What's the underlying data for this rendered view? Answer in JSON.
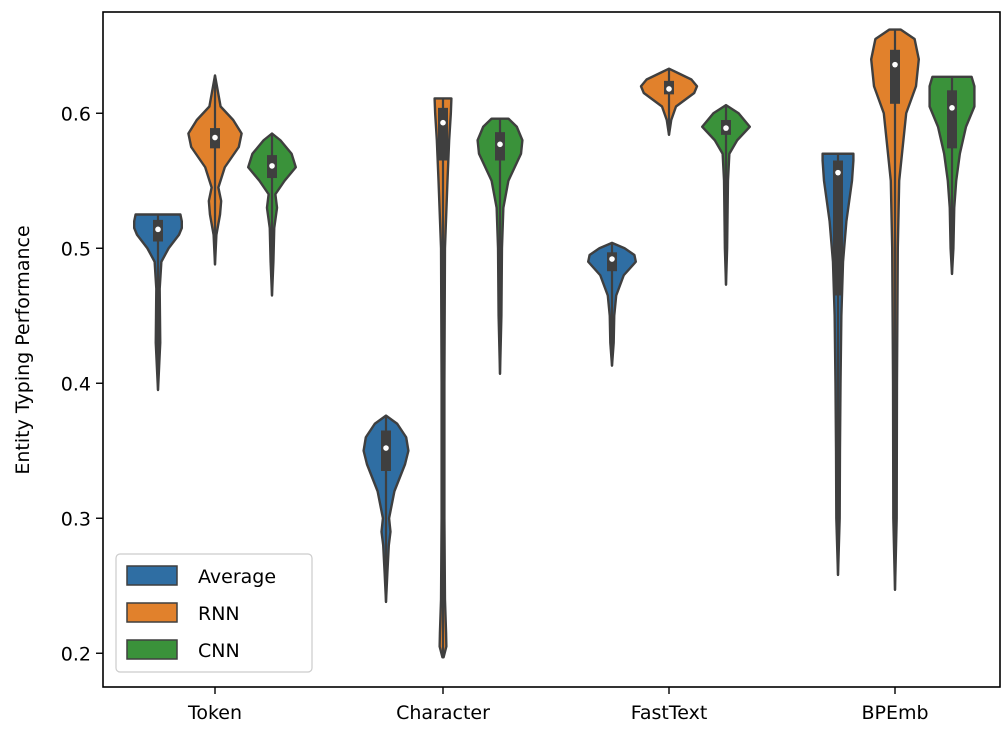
{
  "chart_data": {
    "type": "violin",
    "title": "",
    "xlabel": "",
    "ylabel": "Entity Typing Performance",
    "categories": [
      "Token",
      "Character",
      "FastText",
      "BPEmb"
    ],
    "ylim": [
      0.175,
      0.675
    ],
    "yticks": [
      "0.2",
      "0.3",
      "0.4",
      "0.5",
      "0.6"
    ],
    "legend_position": "lower-left",
    "colors": {
      "Average": "#2f6ea3",
      "RNN": "#e1812c",
      "CNN": "#3a923a",
      "outline": "#3f3f3f",
      "box": "#3f3f3f",
      "median": "#ffffff"
    },
    "series": [
      {
        "name": "Average",
        "violins": [
          {
            "category": "Token",
            "min": 0.395,
            "max": 0.525,
            "q1": 0.505,
            "median": 0.514,
            "q3": 0.521,
            "profile": [
              [
                0.395,
                0.0
              ],
              [
                0.41,
                0.035
              ],
              [
                0.43,
                0.08
              ],
              [
                0.45,
                0.07
              ],
              [
                0.47,
                0.06
              ],
              [
                0.49,
                0.12
              ],
              [
                0.5,
                0.38
              ],
              [
                0.51,
                0.75
              ],
              [
                0.515,
                0.85
              ],
              [
                0.52,
                0.85
              ],
              [
                0.525,
                0.8
              ]
            ]
          },
          {
            "category": "Character",
            "min": 0.238,
            "max": 0.376,
            "q1": 0.335,
            "median": 0.352,
            "q3": 0.365,
            "profile": [
              [
                0.238,
                0.0
              ],
              [
                0.26,
                0.05
              ],
              [
                0.28,
                0.1
              ],
              [
                0.29,
                0.16
              ],
              [
                0.3,
                0.11
              ],
              [
                0.32,
                0.3
              ],
              [
                0.34,
                0.68
              ],
              [
                0.35,
                0.8
              ],
              [
                0.36,
                0.72
              ],
              [
                0.37,
                0.4
              ],
              [
                0.376,
                0.0
              ]
            ]
          },
          {
            "category": "FastText",
            "min": 0.413,
            "max": 0.504,
            "q1": 0.483,
            "median": 0.492,
            "q3": 0.497,
            "profile": [
              [
                0.413,
                0.0
              ],
              [
                0.43,
                0.06
              ],
              [
                0.45,
                0.08
              ],
              [
                0.465,
                0.15
              ],
              [
                0.48,
                0.42
              ],
              [
                0.49,
                0.85
              ],
              [
                0.495,
                0.8
              ],
              [
                0.5,
                0.45
              ],
              [
                0.504,
                0.0
              ]
            ]
          },
          {
            "category": "BPEmb",
            "min": 0.258,
            "max": 0.57,
            "q1": 0.465,
            "median": 0.556,
            "q3": 0.565,
            "profile": [
              [
                0.258,
                0.0
              ],
              [
                0.3,
                0.06
              ],
              [
                0.35,
                0.07
              ],
              [
                0.4,
                0.09
              ],
              [
                0.45,
                0.12
              ],
              [
                0.49,
                0.18
              ],
              [
                0.52,
                0.3
              ],
              [
                0.55,
                0.5
              ],
              [
                0.565,
                0.55
              ],
              [
                0.57,
                0.55
              ]
            ]
          }
        ]
      },
      {
        "name": "RNN",
        "violins": [
          {
            "category": "Token",
            "min": 0.488,
            "max": 0.628,
            "q1": 0.574,
            "median": 0.582,
            "q3": 0.589,
            "profile": [
              [
                0.488,
                0.0
              ],
              [
                0.51,
                0.05
              ],
              [
                0.525,
                0.18
              ],
              [
                0.535,
                0.22
              ],
              [
                0.545,
                0.12
              ],
              [
                0.56,
                0.35
              ],
              [
                0.575,
                0.85
              ],
              [
                0.585,
                0.95
              ],
              [
                0.595,
                0.65
              ],
              [
                0.605,
                0.2
              ],
              [
                0.628,
                0.0
              ]
            ]
          },
          {
            "category": "Character",
            "min": 0.197,
            "max": 0.611,
            "q1": 0.565,
            "median": 0.593,
            "q3": 0.604,
            "profile": [
              [
                0.197,
                0.02
              ],
              [
                0.205,
                0.12
              ],
              [
                0.215,
                0.11
              ],
              [
                0.24,
                0.07
              ],
              [
                0.3,
                0.05
              ],
              [
                0.4,
                0.05
              ],
              [
                0.5,
                0.07
              ],
              [
                0.55,
                0.16
              ],
              [
                0.58,
                0.22
              ],
              [
                0.6,
                0.28
              ],
              [
                0.611,
                0.3
              ]
            ]
          },
          {
            "category": "FastText",
            "min": 0.584,
            "max": 0.633,
            "q1": 0.614,
            "median": 0.618,
            "q3": 0.624,
            "profile": [
              [
                0.584,
                0.0
              ],
              [
                0.595,
                0.08
              ],
              [
                0.605,
                0.25
              ],
              [
                0.615,
                0.9
              ],
              [
                0.62,
                1.0
              ],
              [
                0.625,
                0.8
              ],
              [
                0.63,
                0.3
              ],
              [
                0.633,
                0.0
              ]
            ]
          },
          {
            "category": "BPEmb",
            "min": 0.247,
            "max": 0.662,
            "q1": 0.607,
            "median": 0.636,
            "q3": 0.647,
            "profile": [
              [
                0.247,
                0.0
              ],
              [
                0.3,
                0.06
              ],
              [
                0.4,
                0.07
              ],
              [
                0.5,
                0.1
              ],
              [
                0.55,
                0.15
              ],
              [
                0.58,
                0.3
              ],
              [
                0.6,
                0.4
              ],
              [
                0.62,
                0.75
              ],
              [
                0.64,
                0.85
              ],
              [
                0.655,
                0.7
              ],
              [
                0.662,
                0.2
              ]
            ]
          }
        ]
      },
      {
        "name": "CNN",
        "violins": [
          {
            "category": "Token",
            "min": 0.465,
            "max": 0.585,
            "q1": 0.552,
            "median": 0.561,
            "q3": 0.569,
            "profile": [
              [
                0.465,
                0.0
              ],
              [
                0.49,
                0.05
              ],
              [
                0.515,
                0.08
              ],
              [
                0.53,
                0.18
              ],
              [
                0.54,
                0.12
              ],
              [
                0.55,
                0.45
              ],
              [
                0.56,
                0.85
              ],
              [
                0.57,
                0.7
              ],
              [
                0.58,
                0.3
              ],
              [
                0.585,
                0.0
              ]
            ]
          },
          {
            "category": "Character",
            "min": 0.407,
            "max": 0.596,
            "q1": 0.565,
            "median": 0.577,
            "q3": 0.586,
            "profile": [
              [
                0.407,
                0.0
              ],
              [
                0.45,
                0.05
              ],
              [
                0.5,
                0.07
              ],
              [
                0.53,
                0.12
              ],
              [
                0.55,
                0.3
              ],
              [
                0.57,
                0.75
              ],
              [
                0.58,
                0.8
              ],
              [
                0.59,
                0.6
              ],
              [
                0.596,
                0.3
              ]
            ]
          },
          {
            "category": "FastText",
            "min": 0.473,
            "max": 0.606,
            "q1": 0.584,
            "median": 0.589,
            "q3": 0.595,
            "profile": [
              [
                0.473,
                0.0
              ],
              [
                0.5,
                0.04
              ],
              [
                0.55,
                0.07
              ],
              [
                0.57,
                0.12
              ],
              [
                0.58,
                0.4
              ],
              [
                0.59,
                0.85
              ],
              [
                0.6,
                0.45
              ],
              [
                0.606,
                0.0
              ]
            ]
          },
          {
            "category": "BPEmb",
            "min": 0.481,
            "max": 0.627,
            "q1": 0.574,
            "median": 0.604,
            "q3": 0.617,
            "profile": [
              [
                0.481,
                0.0
              ],
              [
                0.5,
                0.05
              ],
              [
                0.53,
                0.08
              ],
              [
                0.55,
                0.15
              ],
              [
                0.57,
                0.28
              ],
              [
                0.59,
                0.5
              ],
              [
                0.605,
                0.8
              ],
              [
                0.62,
                0.8
              ],
              [
                0.627,
                0.7
              ]
            ]
          }
        ]
      }
    ]
  }
}
